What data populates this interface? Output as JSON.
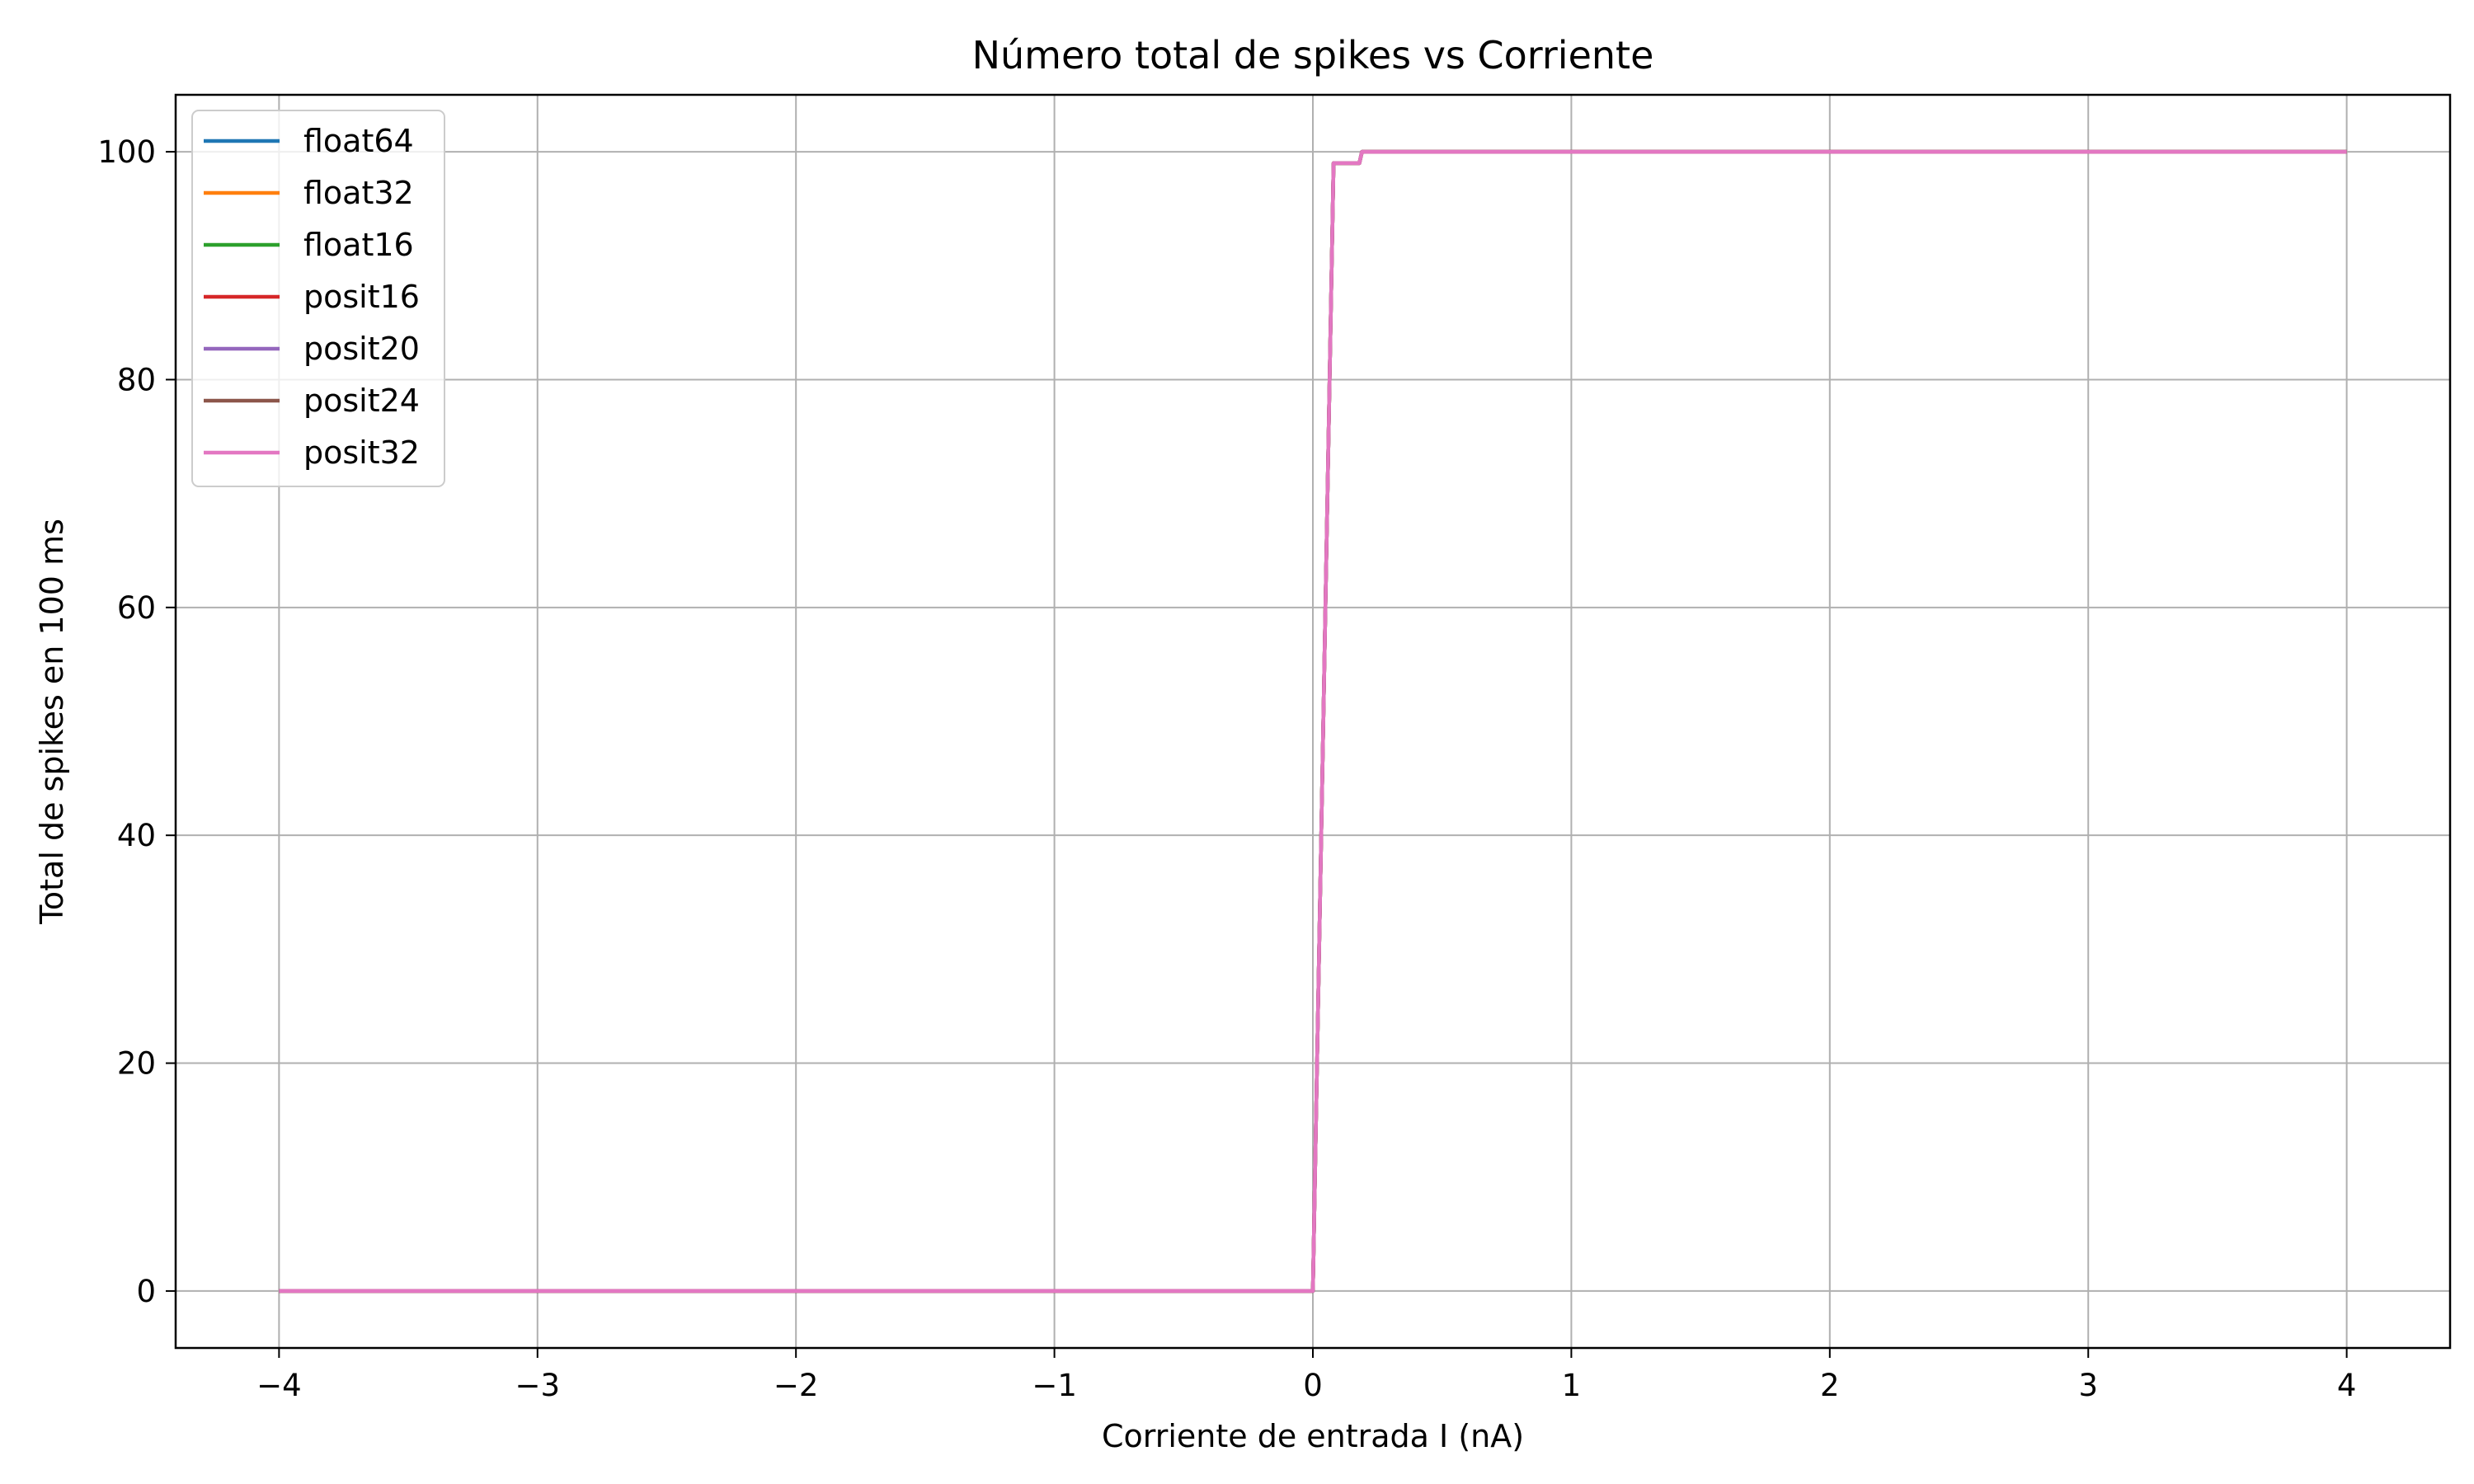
{
  "chart_data": {
    "type": "line",
    "title": "Número total de spikes vs Corriente",
    "xlabel": "Corriente de entrada I (nA)",
    "ylabel": "Total de spikes en 100 ms",
    "xlim": [
      -4.4,
      4.4
    ],
    "ylim": [
      -5,
      105
    ],
    "xticks": [
      -4,
      -3,
      -2,
      -1,
      0,
      1,
      2,
      3,
      4
    ],
    "xtick_labels": [
      "−4",
      "−3",
      "−2",
      "−1",
      "0",
      "1",
      "2",
      "3",
      "4"
    ],
    "yticks": [
      0,
      20,
      40,
      60,
      80,
      100
    ],
    "ytick_labels": [
      "0",
      "20",
      "40",
      "60",
      "80",
      "100"
    ],
    "grid": true,
    "legend_position": "top-left",
    "series": [
      {
        "name": "float64",
        "color": "#1f77b4",
        "x": [
          -4,
          0,
          0.08,
          0.18,
          0.19,
          4
        ],
        "y": [
          0,
          0,
          99,
          99,
          100,
          100
        ]
      },
      {
        "name": "float32",
        "color": "#ff7f0e",
        "x": [
          -4,
          0,
          0.08,
          0.18,
          0.19,
          4
        ],
        "y": [
          0,
          0,
          99,
          99,
          100,
          100
        ]
      },
      {
        "name": "float16",
        "color": "#2ca02c",
        "x": [
          -4,
          0,
          0.08,
          0.18,
          0.19,
          4
        ],
        "y": [
          0,
          0,
          99,
          99,
          100,
          100
        ]
      },
      {
        "name": "posit16",
        "color": "#d62728",
        "x": [
          -4,
          0,
          0.08,
          0.18,
          0.19,
          4
        ],
        "y": [
          0,
          0,
          99,
          99,
          100,
          100
        ]
      },
      {
        "name": "posit20",
        "color": "#9467bd",
        "x": [
          -4,
          0,
          0.08,
          0.18,
          0.19,
          4
        ],
        "y": [
          0,
          0,
          99,
          99,
          100,
          100
        ]
      },
      {
        "name": "posit24",
        "color": "#8c564b",
        "x": [
          -4,
          0,
          0.08,
          0.18,
          0.19,
          4
        ],
        "y": [
          0,
          0,
          99,
          99,
          100,
          100
        ]
      },
      {
        "name": "posit32",
        "color": "#e377c2",
        "x": [
          -4,
          0,
          0.08,
          0.18,
          0.19,
          4
        ],
        "y": [
          0,
          0,
          99,
          99,
          100,
          100
        ]
      }
    ]
  }
}
